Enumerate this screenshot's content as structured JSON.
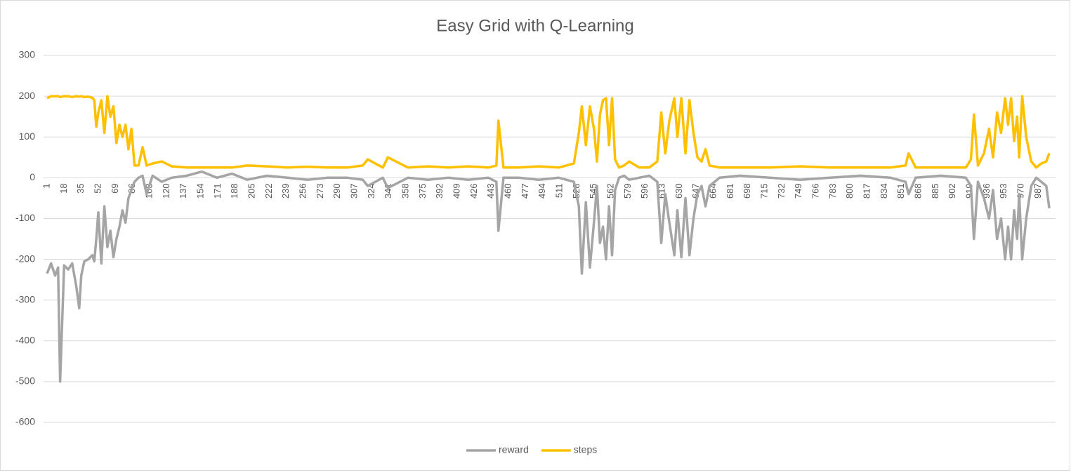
{
  "chart_data": {
    "type": "line",
    "title": "Easy Grid with Q-Learning",
    "x": [
      1,
      5,
      9,
      12,
      14,
      18,
      22,
      26,
      30,
      33,
      35,
      38,
      42,
      46,
      48,
      50,
      52,
      55,
      58,
      61,
      64,
      67,
      70,
      73,
      76,
      79,
      82,
      85,
      88,
      92,
      96,
      100,
      106,
      115,
      125,
      140,
      155,
      170,
      185,
      200,
      220,
      240,
      260,
      280,
      300,
      315,
      320,
      335,
      340,
      360,
      380,
      400,
      420,
      440,
      448,
      450,
      455,
      470,
      490,
      510,
      525,
      530,
      533,
      537,
      541,
      545,
      548,
      551,
      554,
      557,
      560,
      563,
      566,
      570,
      575,
      580,
      590,
      600,
      608,
      612,
      616,
      620,
      625,
      628,
      632,
      636,
      640,
      644,
      648,
      652,
      656,
      660,
      670,
      690,
      720,
      750,
      780,
      810,
      840,
      855,
      858,
      865,
      890,
      915,
      920,
      923,
      927,
      933,
      938,
      942,
      946,
      950,
      954,
      957,
      960,
      963,
      966,
      968,
      971,
      975,
      980,
      985,
      990,
      995,
      998
    ],
    "series": [
      {
        "name": "reward",
        "color": "#a5a5a5",
        "values": [
          -235,
          -210,
          -240,
          -220,
          -500,
          -215,
          -225,
          -210,
          -265,
          -320,
          -240,
          -205,
          -200,
          -190,
          -205,
          -150,
          -85,
          -210,
          -70,
          -170,
          -130,
          -195,
          -150,
          -120,
          -80,
          -110,
          -50,
          -30,
          -10,
          0,
          5,
          -40,
          5,
          -10,
          0,
          5,
          15,
          0,
          10,
          -5,
          5,
          0,
          -5,
          0,
          0,
          -5,
          -20,
          0,
          -25,
          0,
          -5,
          0,
          -5,
          0,
          -10,
          -130,
          0,
          0,
          -5,
          0,
          -10,
          -70,
          -235,
          -60,
          -220,
          -110,
          -20,
          -160,
          -120,
          -200,
          -70,
          -190,
          -30,
          0,
          5,
          -5,
          0,
          5,
          -10,
          -160,
          -40,
          -110,
          -190,
          -80,
          -195,
          -50,
          -190,
          -100,
          -40,
          -20,
          -70,
          -20,
          0,
          5,
          0,
          -5,
          0,
          5,
          0,
          -10,
          -40,
          0,
          5,
          0,
          -20,
          -150,
          -10,
          -50,
          -100,
          -30,
          -150,
          -100,
          -200,
          -120,
          -200,
          -80,
          -150,
          -40,
          -200,
          -100,
          -20,
          0,
          -10,
          -20,
          -75
        ]
      },
      {
        "name": "steps",
        "color": "#ffc000",
        "values": [
          195,
          200,
          200,
          200,
          198,
          200,
          200,
          198,
          200,
          199,
          200,
          198,
          199,
          196,
          190,
          125,
          160,
          190,
          110,
          200,
          150,
          175,
          85,
          130,
          100,
          130,
          70,
          120,
          30,
          30,
          75,
          30,
          35,
          40,
          28,
          25,
          25,
          25,
          25,
          30,
          28,
          25,
          27,
          25,
          25,
          30,
          45,
          25,
          50,
          25,
          28,
          25,
          28,
          25,
          30,
          140,
          25,
          25,
          28,
          25,
          35,
          110,
          175,
          80,
          175,
          120,
          40,
          155,
          190,
          195,
          80,
          195,
          45,
          25,
          30,
          40,
          25,
          25,
          40,
          160,
          60,
          140,
          195,
          100,
          195,
          60,
          190,
          110,
          50,
          40,
          70,
          30,
          25,
          25,
          25,
          28,
          25,
          25,
          25,
          30,
          60,
          25,
          25,
          25,
          45,
          155,
          30,
          60,
          120,
          50,
          160,
          110,
          195,
          130,
          195,
          90,
          150,
          50,
          200,
          100,
          40,
          25,
          35,
          40,
          60
        ]
      }
    ],
    "xlim": [
      1,
      1000
    ],
    "xticks": [
      1,
      18,
      35,
      52,
      69,
      86,
      103,
      120,
      137,
      154,
      171,
      188,
      205,
      222,
      239,
      256,
      273,
      290,
      307,
      324,
      341,
      358,
      375,
      392,
      409,
      426,
      443,
      460,
      477,
      494,
      511,
      528,
      545,
      562,
      579,
      596,
      613,
      630,
      647,
      664,
      681,
      698,
      715,
      732,
      749,
      766,
      783,
      800,
      817,
      834,
      851,
      868,
      885,
      902,
      919,
      936,
      953,
      970,
      987
    ],
    "ylim": [
      -600,
      300
    ],
    "yticks": [
      300,
      200,
      100,
      0,
      -100,
      -200,
      -300,
      -400,
      -500,
      -600
    ],
    "grid": true,
    "legend": "bottom"
  }
}
